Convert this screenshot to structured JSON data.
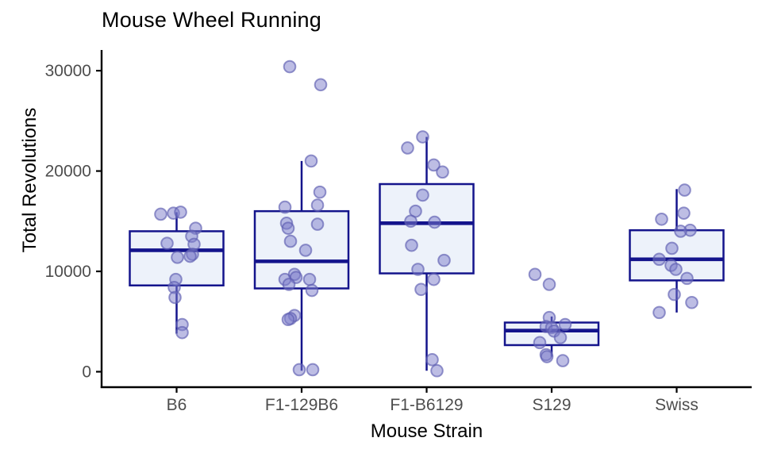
{
  "chart_data": {
    "type": "boxplot",
    "title": "Mouse Wheel Running",
    "xlabel": "Mouse Strain",
    "ylabel": "Total Revolutions",
    "legend": "none",
    "grid": "off",
    "yticks": [
      0,
      10000,
      20000,
      30000
    ],
    "ytick_labels": [
      "0",
      "10000",
      "20000",
      "30000"
    ],
    "ylim": [
      -1900,
      32500
    ],
    "categories": [
      "B6",
      "F1-129B6",
      "F1-B6129",
      "S129",
      "Swiss"
    ],
    "series": [
      {
        "name": "B6",
        "box": {
          "whisker_low": 3800,
          "q1": 8600,
          "median": 12100,
          "q3": 14000,
          "whisker_high": 15900
        },
        "points": [
          [
            -20,
            15700
          ],
          [
            -4,
            15800
          ],
          [
            5,
            15900
          ],
          [
            24,
            14300
          ],
          [
            19,
            13500
          ],
          [
            -12,
            12800
          ],
          [
            22,
            12700
          ],
          [
            20,
            11700
          ],
          [
            1,
            11400
          ],
          [
            17,
            11500
          ],
          [
            -1,
            9200
          ],
          [
            -3,
            8400
          ],
          [
            -2,
            7400
          ],
          [
            7,
            4700
          ],
          [
            7,
            3900
          ]
        ]
      },
      {
        "name": "F1-129B6",
        "box": {
          "whisker_low": 100,
          "q1": 8300,
          "median": 11000,
          "q3": 16000,
          "whisker_high": 21000
        },
        "points": [
          [
            -15,
            30400
          ],
          [
            24,
            28600
          ],
          [
            12,
            21000
          ],
          [
            23,
            17900
          ],
          [
            20,
            16600
          ],
          [
            -21,
            16400
          ],
          [
            -19,
            14800
          ],
          [
            -17,
            14300
          ],
          [
            20,
            14700
          ],
          [
            -14,
            13000
          ],
          [
            5,
            12100
          ],
          [
            -9,
            9700
          ],
          [
            -7,
            9400
          ],
          [
            -21,
            9200
          ],
          [
            10,
            9200
          ],
          [
            -16,
            8700
          ],
          [
            13,
            8100
          ],
          [
            -9,
            5600
          ],
          [
            -14,
            5300
          ],
          [
            -17,
            5200
          ],
          [
            -3,
            200
          ],
          [
            14,
            200
          ]
        ]
      },
      {
        "name": "F1-B6129",
        "box": {
          "whisker_low": 100,
          "q1": 9800,
          "median": 14800,
          "q3": 18700,
          "whisker_high": 23400
        },
        "points": [
          [
            -5,
            23400
          ],
          [
            -24,
            22300
          ],
          [
            9,
            20600
          ],
          [
            20,
            19900
          ],
          [
            -5,
            17600
          ],
          [
            -14,
            16000
          ],
          [
            -20,
            15000
          ],
          [
            10,
            14900
          ],
          [
            -19,
            12600
          ],
          [
            22,
            11100
          ],
          [
            -11,
            10200
          ],
          [
            9,
            9200
          ],
          [
            -7,
            8200
          ],
          [
            7,
            1200
          ],
          [
            13,
            100
          ]
        ]
      },
      {
        "name": "S129",
        "box": {
          "whisker_low": 1500,
          "q1": 2650,
          "median": 4100,
          "q3": 4900,
          "whisker_high": 5500
        },
        "points": [
          [
            -21,
            9700
          ],
          [
            -3,
            8700
          ],
          [
            -3,
            5400
          ],
          [
            -7,
            4500
          ],
          [
            0,
            4400
          ],
          [
            17,
            4700
          ],
          [
            3,
            4050
          ],
          [
            11,
            3400
          ],
          [
            -15,
            2900
          ],
          [
            -7,
            1700
          ],
          [
            -6,
            1500
          ],
          [
            14,
            1100
          ]
        ]
      },
      {
        "name": "Swiss",
        "box": {
          "whisker_low": 5900,
          "q1": 9100,
          "median": 11200,
          "q3": 14100,
          "whisker_high": 18200
        },
        "points": [
          [
            10,
            18100
          ],
          [
            9,
            15800
          ],
          [
            -19,
            15200
          ],
          [
            17,
            14100
          ],
          [
            5,
            14000
          ],
          [
            -6,
            12300
          ],
          [
            -22,
            11200
          ],
          [
            -7,
            10600
          ],
          [
            -1,
            10200
          ],
          [
            13,
            9300
          ],
          [
            -3,
            7700
          ],
          [
            19,
            6900
          ],
          [
            -22,
            5900
          ]
        ]
      }
    ],
    "colors": {
      "box_fill": "#edf2fa",
      "box_stroke": "#14148c",
      "point_fill": "#7b7bc9",
      "point_stroke": "#5e5eb0",
      "axis_line": "#000000",
      "tick_label": "#4d4d4d",
      "title_text": "#000000"
    }
  }
}
